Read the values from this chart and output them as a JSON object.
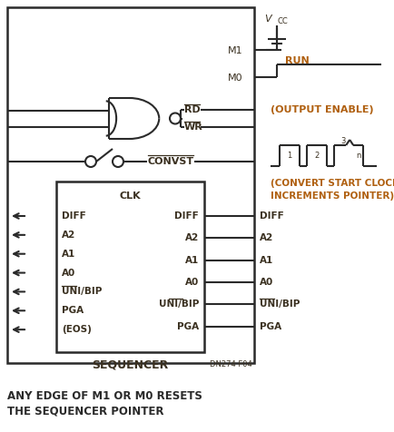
{
  "bg_color": "#ffffff",
  "line_color": "#2a2a2a",
  "text_color": "#3a3020",
  "orange_color": "#b06010",
  "bottom_text1": "ANY EDGE OF M1 OR M0 RESETS",
  "bottom_text2": "THE SEQUENCER POINTER",
  "dn_label": "DN274 F04",
  "left_pins": [
    "DIFF",
    "A2",
    "A1",
    "A0",
    "UNI/BIP",
    "PGA",
    "(EOS)"
  ],
  "right_pins": [
    "DIFF",
    "A2",
    "A1",
    "A0",
    "UNI/BIP",
    "PGA"
  ],
  "overbar_left": [
    4
  ],
  "overbar_right": [
    4
  ]
}
